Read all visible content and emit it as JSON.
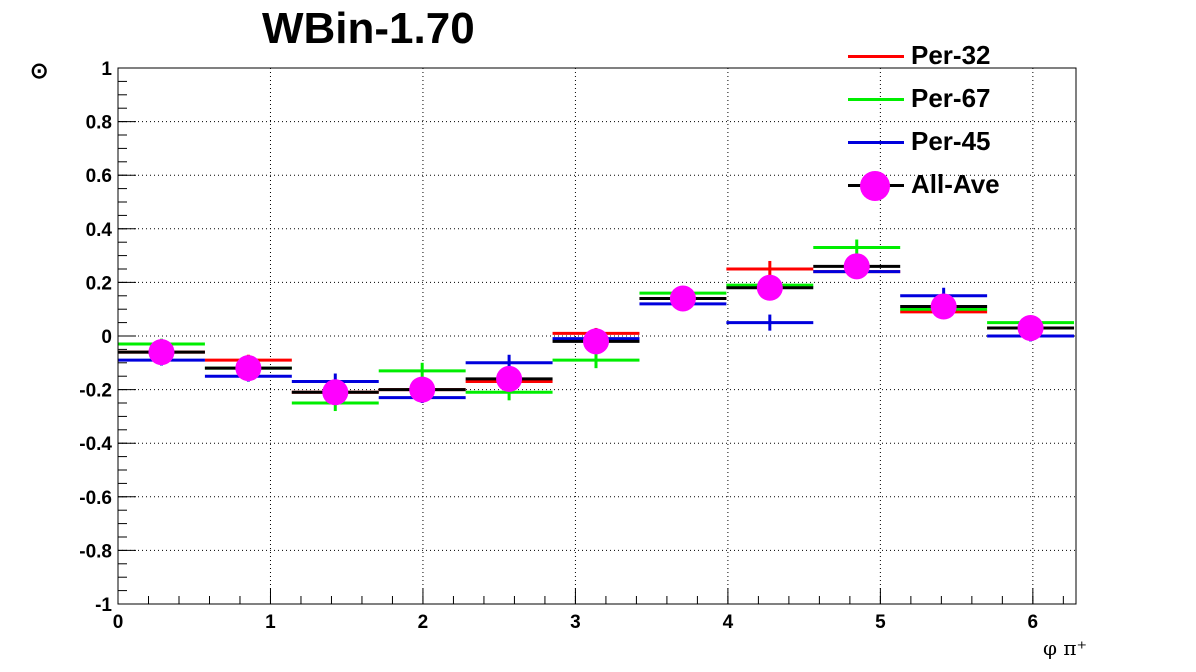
{
  "chart_data": {
    "type": "scatter",
    "title": "WBin-1.70",
    "ylabel": "⊙",
    "xlabel": "φ π⁺",
    "xlim": [
      0,
      6.283
    ],
    "ylim": [
      -1,
      1
    ],
    "grid": true,
    "legend_position": "top-right",
    "x_ticks": [
      "0",
      "1",
      "2",
      "3",
      "4",
      "5",
      "6"
    ],
    "y_ticks": [
      "-1",
      "-0.8",
      "-0.6",
      "-0.4",
      "-0.2",
      "0",
      "0.2",
      "0.4",
      "0.6",
      "0.8",
      "1"
    ],
    "bin_centers": [
      0.285,
      0.855,
      1.425,
      1.995,
      2.565,
      3.135,
      3.705,
      4.275,
      4.845,
      5.415,
      5.985
    ],
    "bin_half_width": 0.285,
    "series": [
      {
        "name": "Per-32",
        "color": "#ff0000",
        "style": "step",
        "values": [
          -0.06,
          -0.09,
          -0.21,
          -0.2,
          -0.17,
          0.01,
          0.14,
          0.25,
          0.24,
          0.09,
          0.03
        ],
        "errors": [
          0.02,
          0.02,
          0.02,
          0.02,
          0.02,
          0.02,
          0.02,
          0.03,
          0.02,
          0.02,
          0.02
        ]
      },
      {
        "name": "Per-67",
        "color": "#00ee00",
        "style": "step",
        "values": [
          -0.03,
          -0.12,
          -0.25,
          -0.13,
          -0.21,
          -0.09,
          0.16,
          0.19,
          0.33,
          0.1,
          0.05
        ],
        "errors": [
          0.02,
          0.02,
          0.03,
          0.03,
          0.03,
          0.03,
          0.02,
          0.02,
          0.03,
          0.02,
          0.02
        ]
      },
      {
        "name": "Per-45",
        "color": "#0000dd",
        "style": "step",
        "values": [
          -0.09,
          -0.15,
          -0.17,
          -0.23,
          -0.1,
          -0.01,
          0.12,
          0.05,
          0.24,
          0.15,
          0.0
        ],
        "errors": [
          0.02,
          0.02,
          0.03,
          0.02,
          0.03,
          0.02,
          0.02,
          0.03,
          0.02,
          0.03,
          0.02
        ]
      },
      {
        "name": "All-Ave",
        "color": "#000000",
        "marker_color": "#ff00ff",
        "style": "step+marker",
        "values": [
          -0.06,
          -0.12,
          -0.21,
          -0.2,
          -0.16,
          -0.02,
          0.14,
          0.18,
          0.26,
          0.11,
          0.03
        ],
        "errors": [
          0.01,
          0.01,
          0.01,
          0.01,
          0.01,
          0.01,
          0.01,
          0.01,
          0.01,
          0.01,
          0.01
        ]
      }
    ]
  }
}
